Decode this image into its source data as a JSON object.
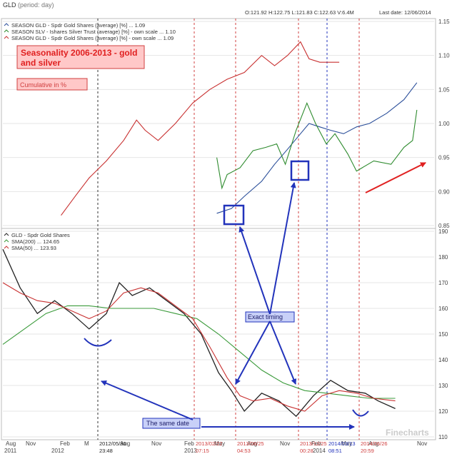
{
  "header": {
    "symbol": "GLD",
    "period": "(period: day)",
    "ohlc": "O:121.92  H:122.75  L:121.83  C:122.63  V:6.4M",
    "last_date": "Last date: 12/06/2014"
  },
  "annotations": {
    "title_box": "Seasonality 2006-2013  - gold and silver",
    "cumulative_box": "Cumulative in %",
    "exact_timing": "Exact timing",
    "same_date": "The same date"
  },
  "colors": {
    "gold_blue": "#2b4f9a",
    "silver_green": "#2e8b2e",
    "gold_red": "#c83030",
    "sma200": "#3a9a3a",
    "sma50": "#c83030",
    "annotation_blue": "#2233bb",
    "title_red": "#e02020",
    "box_fill": "#ffc8c8",
    "grid": "#e6e6e6",
    "vline_red": "#d04040"
  },
  "chart_data": [
    {
      "type": "line",
      "title": "",
      "scale": "right",
      "ylim": [
        0.85,
        1.15
      ],
      "y_ticks": [
        "1.15",
        "1.10",
        "1.05",
        "1.00",
        "0.95",
        "0.90",
        "0.85"
      ],
      "legend": [
        {
          "name": "SEASON GLD - Spdr Gold Shares (average) [%] ... 1.09",
          "color": "#2b4f9a"
        },
        {
          "name": "SEASON SLV - Ishares Silver Trust (average) [%] - own scale ... 1.10",
          "color": "#2e8b2e"
        },
        {
          "name": "SEASON GLD - Spdr Gold Shares (average) [%] - own scale ... 1.09",
          "color": "#c83030"
        }
      ],
      "series": [
        {
          "name": "SEASON GLD - Spdr Gold Shares (average) [%] ... 1.09",
          "points": [
            [
              0.496,
              0.868
            ],
            [
              0.53,
              0.875
            ],
            [
              0.56,
              0.893
            ],
            [
              0.6,
              0.915
            ],
            [
              0.63,
              0.94
            ],
            [
              0.66,
              0.962
            ],
            [
              0.69,
              0.985
            ],
            [
              0.71,
              1.0
            ],
            [
              0.735,
              0.995
            ],
            [
              0.76,
              0.99
            ],
            [
              0.79,
              0.985
            ],
            [
              0.82,
              0.995
            ],
            [
              0.85,
              1.0
            ],
            [
              0.89,
              1.015
            ],
            [
              0.93,
              1.035
            ],
            [
              0.96,
              1.06
            ]
          ]
        },
        {
          "name": "SEASON SLV - Ishares Silver Trust (average) [%] - own scale ... 1.10",
          "points": [
            [
              0.496,
              0.95
            ],
            [
              0.508,
              0.905
            ],
            [
              0.52,
              0.925
            ],
            [
              0.55,
              0.935
            ],
            [
              0.58,
              0.96
            ],
            [
              0.61,
              0.965
            ],
            [
              0.635,
              0.97
            ],
            [
              0.655,
              0.94
            ],
            [
              0.68,
              0.99
            ],
            [
              0.705,
              1.03
            ],
            [
              0.725,
              1.0
            ],
            [
              0.75,
              0.97
            ],
            [
              0.77,
              0.985
            ],
            [
              0.8,
              0.955
            ],
            [
              0.82,
              0.93
            ],
            [
              0.86,
              0.945
            ],
            [
              0.9,
              0.94
            ],
            [
              0.93,
              0.965
            ],
            [
              0.95,
              0.975
            ],
            [
              0.96,
              1.02
            ]
          ]
        },
        {
          "name": "SEASON GLD - Spdr Gold Shares (average) [%] - own scale ... 1.09",
          "points": [
            [
              0.135,
              0.865
            ],
            [
              0.17,
              0.895
            ],
            [
              0.2,
              0.92
            ],
            [
              0.24,
              0.945
            ],
            [
              0.28,
              0.975
            ],
            [
              0.31,
              1.005
            ],
            [
              0.33,
              0.99
            ],
            [
              0.36,
              0.975
            ],
            [
              0.4,
              1.0
            ],
            [
              0.44,
              1.03
            ],
            [
              0.48,
              1.05
            ],
            [
              0.52,
              1.065
            ],
            [
              0.56,
              1.075
            ],
            [
              0.6,
              1.1
            ],
            [
              0.63,
              1.085
            ],
            [
              0.66,
              1.1
            ],
            [
              0.69,
              1.12
            ],
            [
              0.71,
              1.095
            ],
            [
              0.735,
              1.09
            ],
            [
              0.76,
              1.09
            ],
            [
              0.78,
              1.09
            ]
          ]
        }
      ]
    },
    {
      "type": "line",
      "title": "",
      "scale": "right",
      "ylim": [
        110,
        190
      ],
      "y_ticks": [
        "190",
        "180",
        "170",
        "160",
        "150",
        "140",
        "130",
        "120",
        "110"
      ],
      "legend": [
        {
          "name": "GLD - Spdr Gold Shares",
          "color": "#222222"
        },
        {
          "name": "SMA(200) ... 124.65",
          "color": "#3a9a3a"
        },
        {
          "name": "SMA(50) ... 123.93",
          "color": "#c83030"
        }
      ],
      "x_ticks_row1": [
        "Aug",
        "Nov",
        "Feb",
        "M",
        "Aug",
        "Nov",
        "Feb",
        "May",
        "Aug",
        "Nov",
        "Feb",
        "May",
        "Aug",
        "Nov"
      ],
      "x_ticks_row2": [
        "2011",
        "2012",
        "2013",
        "2014"
      ],
      "date_labels": [
        {
          "label": "2012/05/30",
          "label2": "23:48",
          "color": "#222222"
        },
        {
          "label": "2013/02/22",
          "label2": "07:15",
          "color": "#d04040"
        },
        {
          "label": "2013/06/25",
          "label2": "04:53",
          "color": "#d04040"
        },
        {
          "label": "2013/12/25",
          "label2": "00:28",
          "color": "#d04040"
        },
        {
          "label": "2014/03/13",
          "label2": "08:51",
          "color": "#2233bb"
        },
        {
          "label": "2014/06/26",
          "label2": "20:59",
          "color": "#d04040"
        }
      ],
      "series": [
        {
          "name": "GLD - Spdr Gold Shares",
          "points": [
            [
              0.0,
              183
            ],
            [
              0.04,
              168
            ],
            [
              0.08,
              158
            ],
            [
              0.12,
              163
            ],
            [
              0.16,
              158
            ],
            [
              0.2,
              152
            ],
            [
              0.24,
              158
            ],
            [
              0.27,
              170
            ],
            [
              0.3,
              165
            ],
            [
              0.34,
              168
            ],
            [
              0.38,
              163
            ],
            [
              0.42,
              158
            ],
            [
              0.46,
              150
            ],
            [
              0.5,
              135
            ],
            [
              0.53,
              128
            ],
            [
              0.56,
              120
            ],
            [
              0.6,
              127
            ],
            [
              0.64,
              124
            ],
            [
              0.68,
              118
            ],
            [
              0.72,
              126
            ],
            [
              0.76,
              132
            ],
            [
              0.8,
              128
            ],
            [
              0.84,
              127
            ],
            [
              0.87,
              124
            ],
            [
              0.91,
              121
            ]
          ]
        },
        {
          "name": "SMA(200) ... 124.65",
          "points": [
            [
              0.0,
              146
            ],
            [
              0.05,
              152
            ],
            [
              0.1,
              158
            ],
            [
              0.15,
              161
            ],
            [
              0.2,
              161
            ],
            [
              0.25,
              160
            ],
            [
              0.3,
              160
            ],
            [
              0.35,
              160
            ],
            [
              0.4,
              158
            ],
            [
              0.45,
              156
            ],
            [
              0.5,
              150
            ],
            [
              0.55,
              143
            ],
            [
              0.6,
              136
            ],
            [
              0.65,
              131
            ],
            [
              0.7,
              128
            ],
            [
              0.75,
              127
            ],
            [
              0.8,
              126
            ],
            [
              0.85,
              125
            ],
            [
              0.91,
              125
            ]
          ]
        },
        {
          "name": "SMA(50) ... 123.93",
          "points": [
            [
              0.0,
              170
            ],
            [
              0.04,
              166
            ],
            [
              0.08,
              163
            ],
            [
              0.12,
              162
            ],
            [
              0.16,
              159
            ],
            [
              0.2,
              156
            ],
            [
              0.24,
              159
            ],
            [
              0.28,
              166
            ],
            [
              0.32,
              168
            ],
            [
              0.36,
              166
            ],
            [
              0.4,
              161
            ],
            [
              0.44,
              156
            ],
            [
              0.48,
              145
            ],
            [
              0.52,
              133
            ],
            [
              0.55,
              126
            ],
            [
              0.58,
              124
            ],
            [
              0.62,
              125
            ],
            [
              0.66,
              122
            ],
            [
              0.7,
              120
            ],
            [
              0.74,
              126
            ],
            [
              0.78,
              128
            ],
            [
              0.82,
              127
            ],
            [
              0.86,
              125
            ],
            [
              0.91,
              124
            ]
          ]
        }
      ]
    }
  ],
  "watermark": "Finecharts"
}
